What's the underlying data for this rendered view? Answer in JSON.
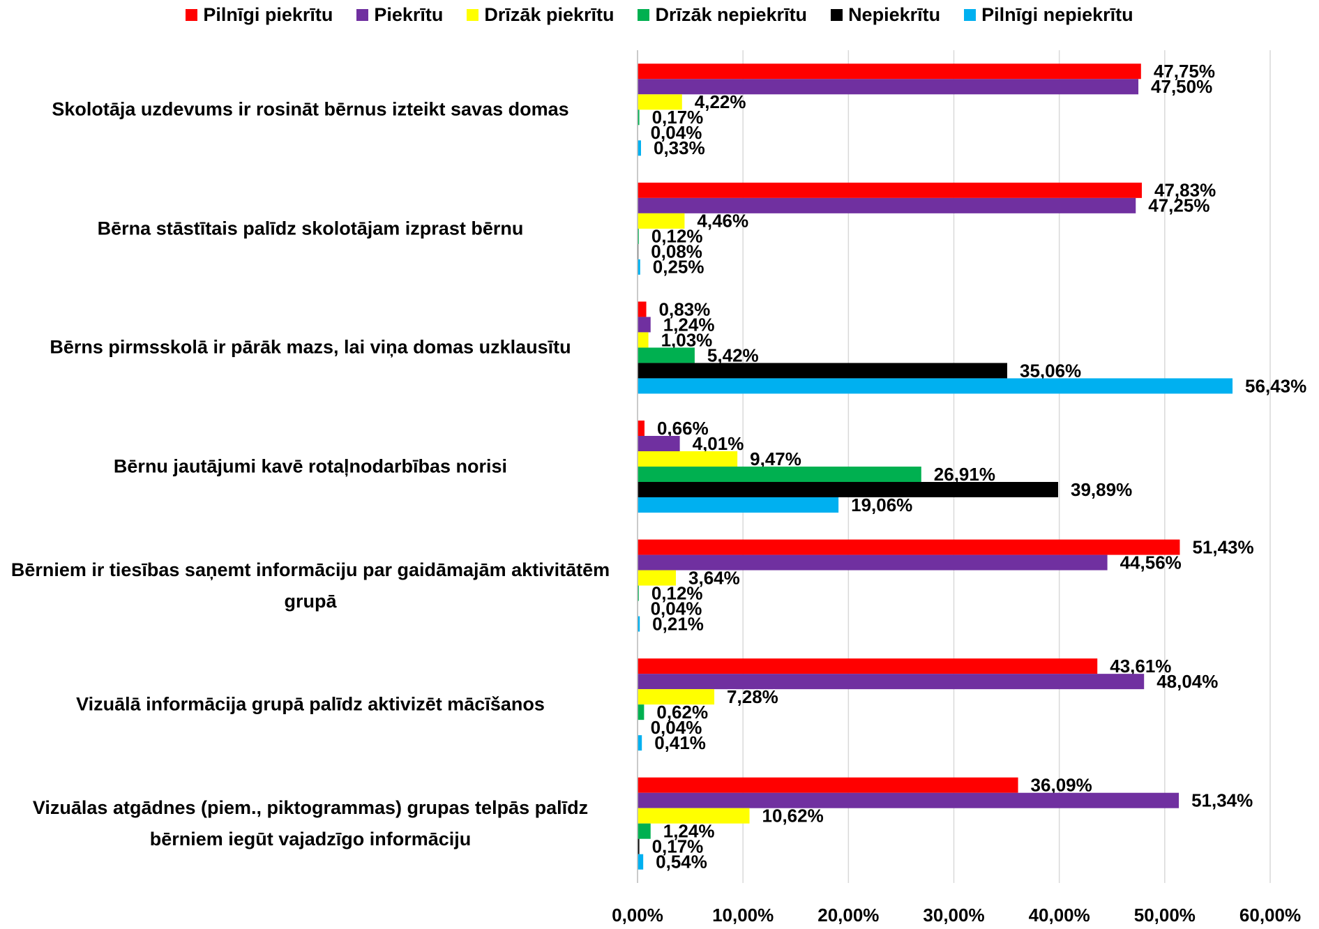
{
  "chart_data": {
    "type": "bar",
    "orientation": "horizontal",
    "categories": [
      "Skolotāja uzdevums ir rosināt bērnus izteikt savas domas",
      "Bērna stāstītais palīdz skolotājam izprast bērnu",
      "Bērns pirmsskolā ir pārāk mazs, lai viņa domas uzklausītu",
      "Bērnu jautājumi kavē rotaļnodarbības norisi",
      "Bērniem ir tiesības saņemt informāciju par gaidāmajām aktivitātēm grupā",
      "Vizuālā informācija grupā palīdz aktivizēt mācīšanos",
      "Vizuālas atgādnes (piem., piktogrammas) grupas telpās palīdz bērniem iegūt vajadzīgo informāciju"
    ],
    "series": [
      {
        "name": "Pilnīgi piekrītu",
        "color": "#ff0000",
        "values": [
          47.75,
          47.83,
          0.83,
          0.66,
          51.43,
          43.61,
          36.09
        ],
        "value_labels": [
          "47,75%",
          "47,83%",
          "0,83%",
          "0,66%",
          "51,43%",
          "43,61%",
          "36,09%"
        ]
      },
      {
        "name": "Piekrītu",
        "color": "#7030a0",
        "values": [
          47.5,
          47.25,
          1.24,
          4.01,
          44.56,
          48.04,
          51.34
        ],
        "value_labels": [
          "47,50%",
          "47,25%",
          "1,24%",
          "4,01%",
          "44,56%",
          "48,04%",
          "51,34%"
        ]
      },
      {
        "name": "Drīzāk piekrītu",
        "color": "#ffff00",
        "values": [
          4.22,
          4.46,
          1.03,
          9.47,
          3.64,
          7.28,
          10.62
        ],
        "value_labels": [
          "4,22%",
          "4,46%",
          "1,03%",
          "9,47%",
          "3,64%",
          "7,28%",
          "10,62%"
        ]
      },
      {
        "name": "Drīzāk nepiekrītu",
        "color": "#00b050",
        "values": [
          0.17,
          0.12,
          5.42,
          26.91,
          0.12,
          0.62,
          1.24
        ],
        "value_labels": [
          "0,17%",
          "0,12%",
          "5,42%",
          "26,91%",
          "0,12%",
          "0,62%",
          "1,24%"
        ]
      },
      {
        "name": "Nepiekrītu",
        "color": "#000000",
        "values": [
          0.04,
          0.08,
          35.06,
          39.89,
          0.04,
          0.04,
          0.17
        ],
        "value_labels": [
          "0,04%",
          "0,08%",
          "35,06%",
          "39,89%",
          "0,04%",
          "0,04%",
          "0,17%"
        ]
      },
      {
        "name": "Pilnīgi nepiekrītu",
        "color": "#00b0f0",
        "values": [
          0.33,
          0.25,
          56.43,
          19.06,
          0.21,
          0.41,
          0.54
        ],
        "value_labels": [
          "0,33%",
          "0,25%",
          "56,43%",
          "19,06%",
          "0,21%",
          "0,41%",
          "0,54%"
        ]
      }
    ],
    "xlim": [
      0,
      60
    ],
    "xticks": [
      {
        "value": 0,
        "label": "0,00%"
      },
      {
        "value": 10,
        "label": "10,00%"
      },
      {
        "value": 20,
        "label": "20,00%"
      },
      {
        "value": 30,
        "label": "30,00%"
      },
      {
        "value": 40,
        "label": "40,00%"
      },
      {
        "value": 50,
        "label": "50,00%"
      },
      {
        "value": 60,
        "label": "60,00%"
      }
    ],
    "grid": true,
    "legend": "top"
  }
}
